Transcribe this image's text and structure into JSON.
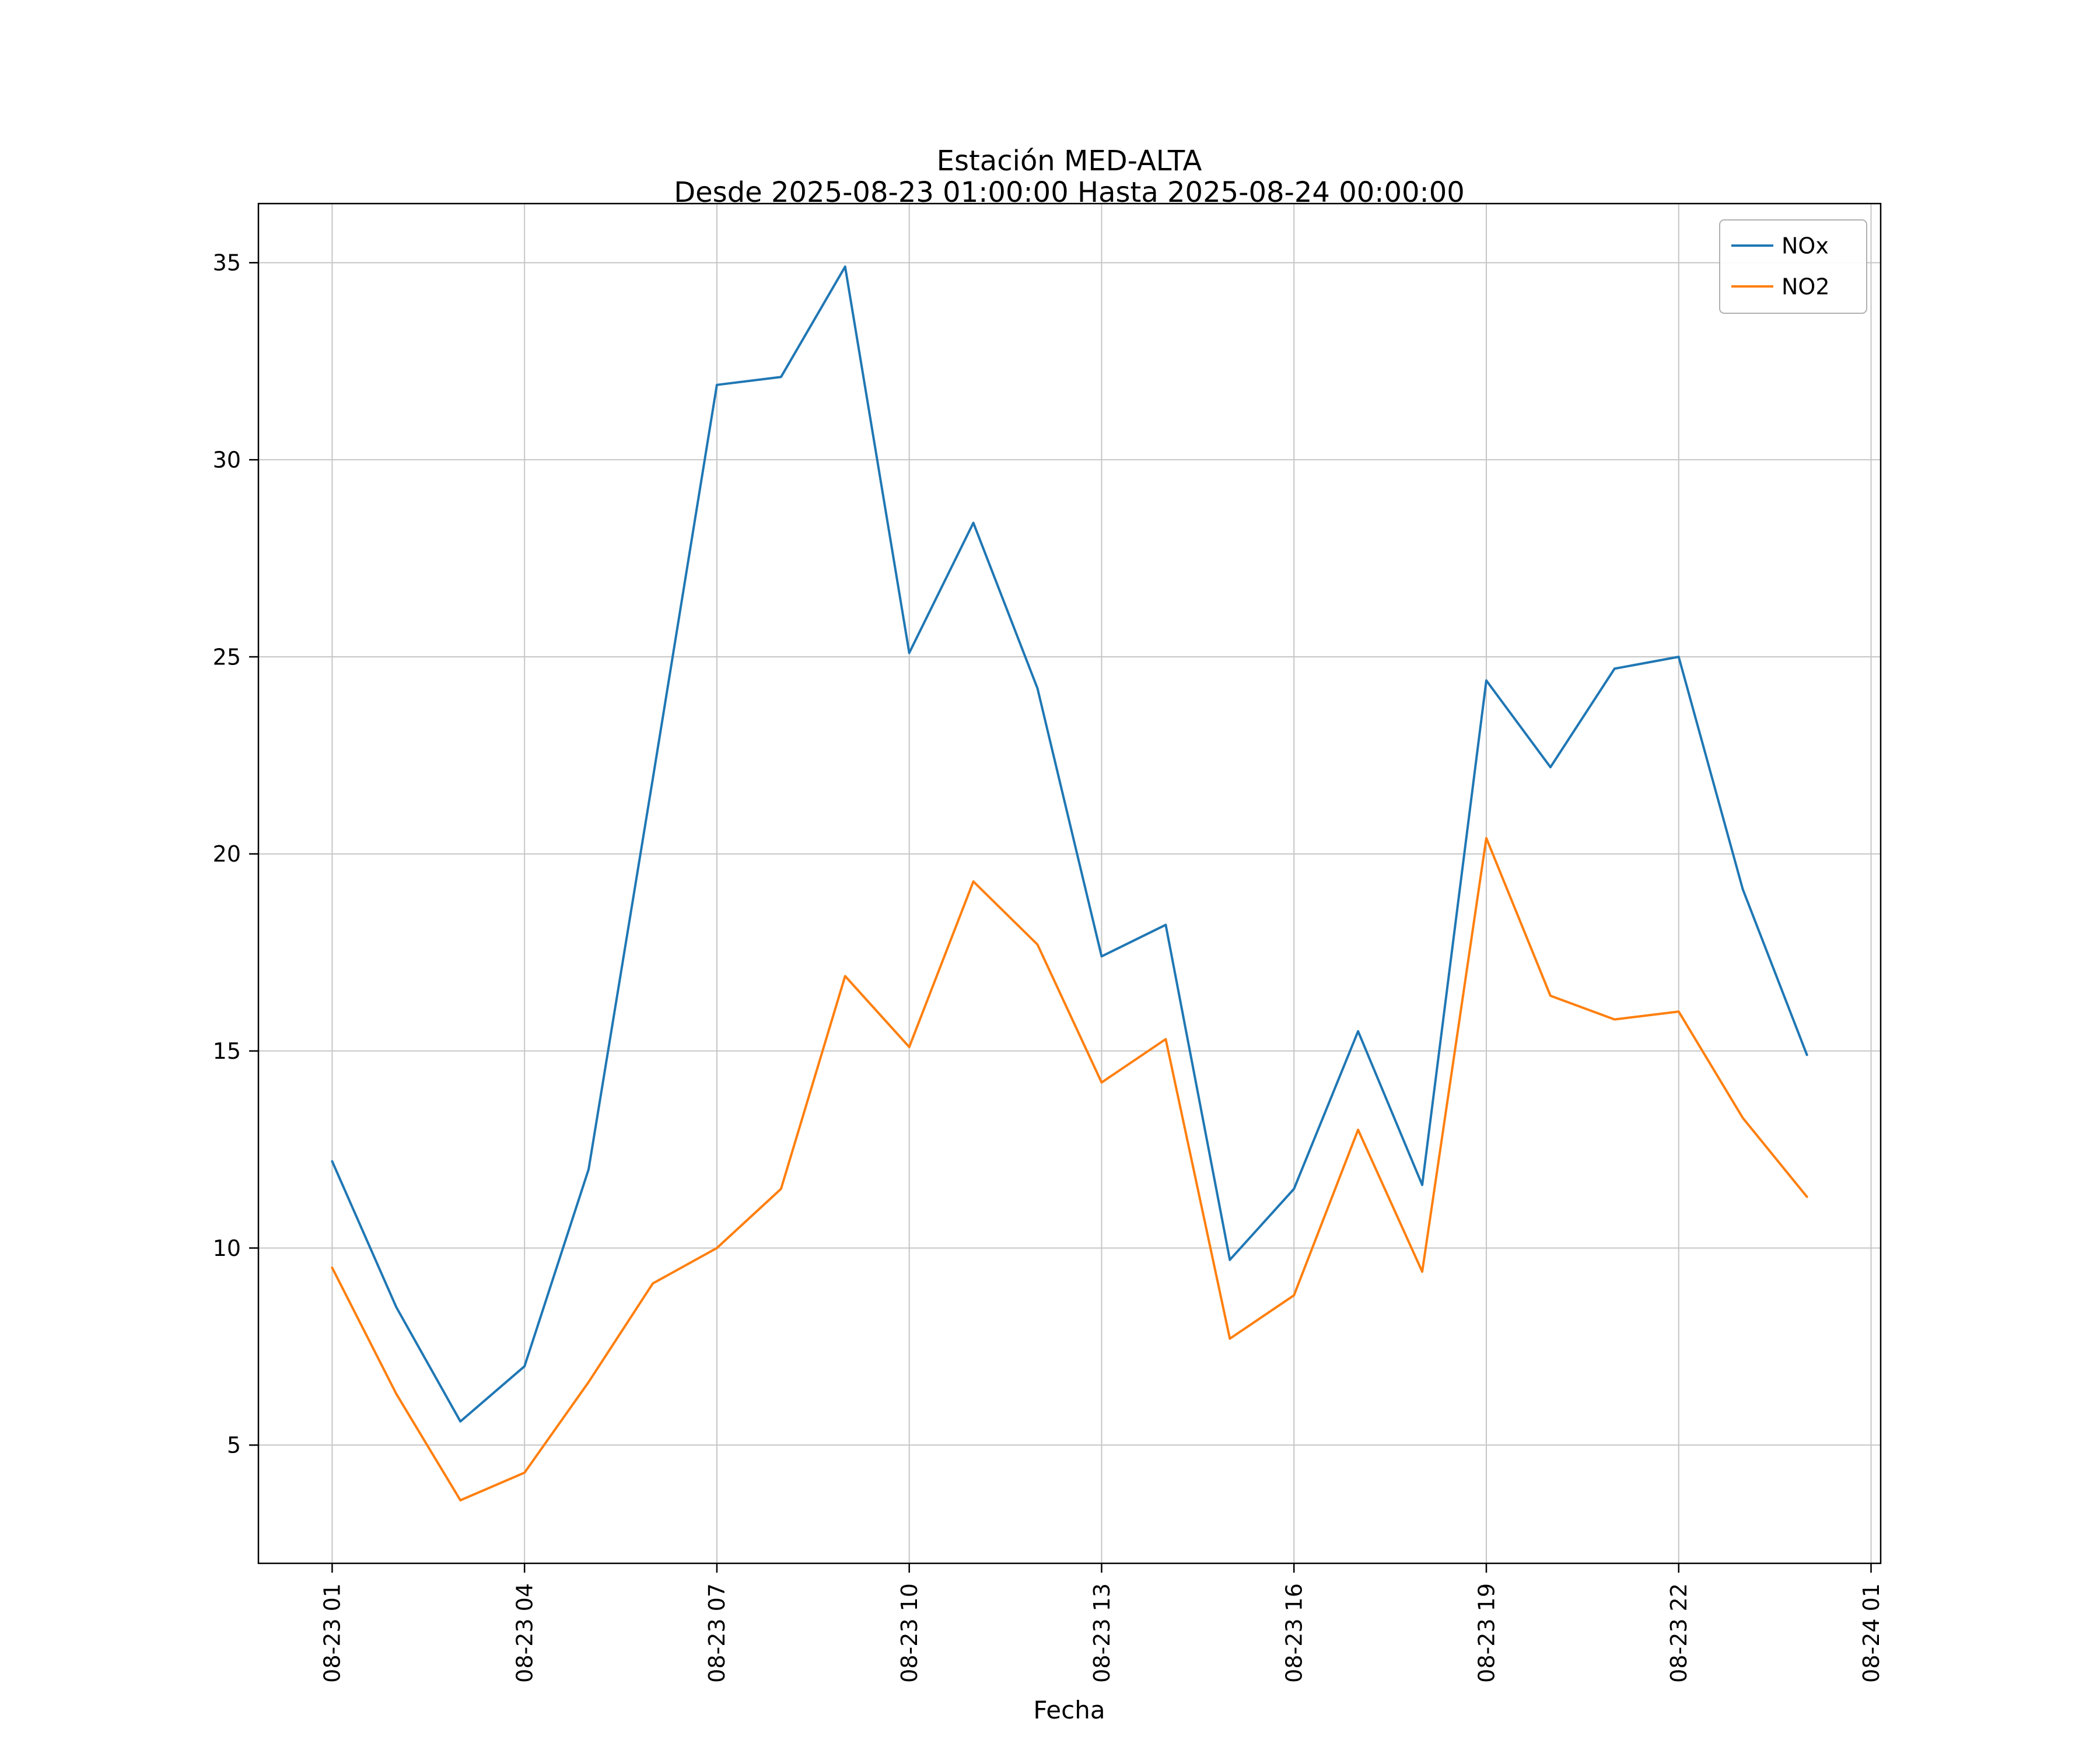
{
  "figure": {
    "background": "#ffffff"
  },
  "chart_data": {
    "type": "line",
    "title": "Estación MED-ALTA",
    "subtitle": "Desde 2025-08-23 01:00:00 Hasta 2025-08-24 00:00:00",
    "xlabel": "Fecha",
    "ylabel": "",
    "x": [
      1,
      2,
      3,
      4,
      5,
      6,
      7,
      8,
      9,
      10,
      11,
      12,
      13,
      14,
      15,
      16,
      17,
      18,
      19,
      20,
      21,
      22,
      23,
      24
    ],
    "series": [
      {
        "name": "NOx",
        "color": "#1f77b4",
        "values": [
          12.2,
          8.5,
          5.6,
          7.0,
          12.0,
          21.9,
          31.9,
          32.1,
          34.9,
          25.1,
          28.4,
          24.2,
          17.4,
          18.2,
          9.7,
          11.5,
          15.5,
          11.6,
          24.4,
          22.2,
          24.7,
          25.0,
          19.1,
          14.9
        ]
      },
      {
        "name": "NO2",
        "color": "#ff7f0e",
        "values": [
          9.5,
          6.3,
          3.6,
          4.3,
          6.6,
          9.1,
          10.0,
          11.5,
          16.9,
          15.1,
          19.3,
          17.7,
          14.2,
          15.3,
          7.7,
          8.8,
          13.0,
          9.4,
          20.4,
          16.4,
          15.8,
          16.0,
          13.3,
          11.3
        ]
      }
    ],
    "xticks": [
      {
        "value": 1,
        "label": "08-23 01"
      },
      {
        "value": 4,
        "label": "08-23 04"
      },
      {
        "value": 7,
        "label": "08-23 07"
      },
      {
        "value": 10,
        "label": "08-23 10"
      },
      {
        "value": 13,
        "label": "08-23 13"
      },
      {
        "value": 16,
        "label": "08-23 16"
      },
      {
        "value": 19,
        "label": "08-23 19"
      },
      {
        "value": 22,
        "label": "08-23 22"
      },
      {
        "value": 25,
        "label": "08-24 01"
      }
    ],
    "yticks": [
      5,
      10,
      15,
      20,
      25,
      30,
      35
    ],
    "xlim": [
      -0.15,
      25.15
    ],
    "ylim": [
      2.0,
      36.5
    ],
    "grid": true,
    "legend": {
      "position": "upper right",
      "entries": [
        "NOx",
        "NO2"
      ]
    },
    "style": {
      "grid_color": "#c6c6c6",
      "axis_color": "#000000",
      "legend_border": "#b0b0b0",
      "text_color": "#000000",
      "background": "#ffffff"
    }
  }
}
